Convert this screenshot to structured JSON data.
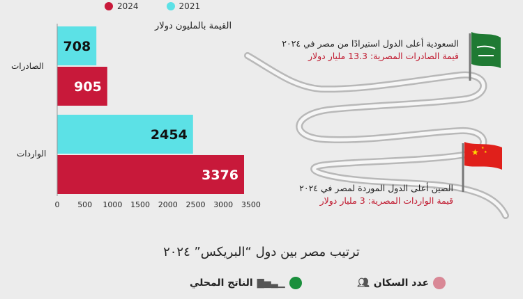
{
  "chart_data": {
    "type": "bar",
    "orientation": "horizontal",
    "categories": [
      "الصادرات",
      "الواردات"
    ],
    "series": [
      {
        "name": "2021",
        "color": "#5ce1e6",
        "values": [
          708,
          2454
        ]
      },
      {
        "name": "2024",
        "color": "#c8193a",
        "values": [
          905,
          3376
        ]
      }
    ],
    "xlim": [
      0,
      3500
    ],
    "xticks": [
      0,
      500,
      1000,
      1500,
      2000,
      2500,
      3000,
      3500
    ],
    "unit_label": "القيمة بالمليون دولار",
    "legend_position": "top"
  },
  "annotations": {
    "saudi": {
      "title": "السعودية أعلى الدول استيرادًا من مصر في ٢٠٢٤",
      "subtitle": "قيمة الصادرات المصرية: 13.3 مليار دولار",
      "flag_icon": "saudi-flag-icon"
    },
    "china": {
      "title": "الصين أعلى الدول الموردة لمصر في ٢٠٢٤",
      "subtitle": "قيمة الواردات المصرية: 3 مليار دولار",
      "flag_icon": "china-flag-icon"
    }
  },
  "section": {
    "title": "ترتيب مصر بين دول “البريكس” ٢٠٢٤",
    "metrics": [
      {
        "label": "الناتج المحلي",
        "icon": "bar-chart-icon",
        "color": "#1a8f3c"
      },
      {
        "label": "عدد السكان",
        "icon": "people-icon",
        "color": "#d98896"
      }
    ]
  }
}
